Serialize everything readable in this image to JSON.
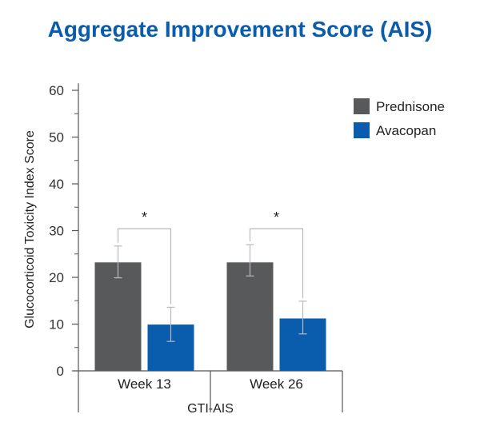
{
  "chart_data": {
    "type": "bar",
    "title": "Aggregate Improvement Score (AIS)",
    "ylabel": "Glucocorticoid Toxicity Index Score",
    "xlabel": "GTI-AIS",
    "ylim": [
      0,
      65
    ],
    "yticks": [
      0,
      10,
      20,
      30,
      40,
      50,
      60
    ],
    "categories": [
      "Week 13",
      "Week 26"
    ],
    "series": [
      {
        "name": "Prednisone",
        "color": "#58595b",
        "values": [
          23.2,
          23.2
        ],
        "error_low": [
          19.9,
          20.3
        ],
        "error_high": [
          26.7,
          27.0
        ]
      },
      {
        "name": "Avacopan",
        "color": "#0a5cad",
        "values": [
          9.9,
          11.2
        ],
        "error_low": [
          6.3,
          7.9
        ],
        "error_high": [
          13.6,
          14.9
        ]
      }
    ],
    "annotations": [
      {
        "category": "Week 13",
        "text": "*"
      },
      {
        "category": "Week 26",
        "text": "*"
      }
    ],
    "legend_position": "top-right",
    "grid": false,
    "colors": {
      "title": "#0a5cad",
      "axis": "#555555"
    }
  }
}
